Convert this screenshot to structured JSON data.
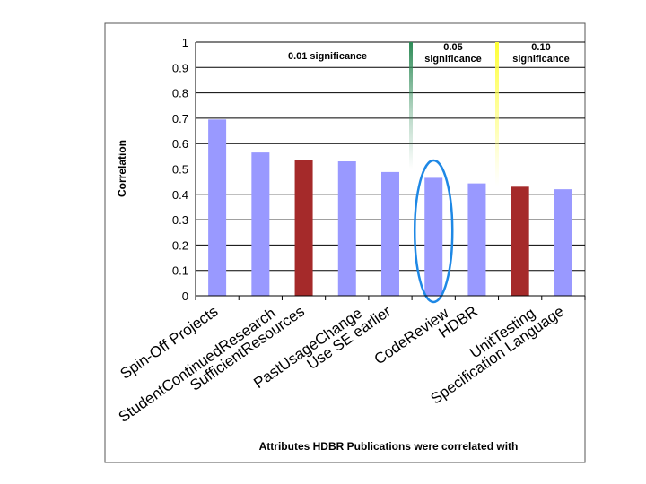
{
  "chart_data": {
    "type": "bar",
    "title": "",
    "ylabel": "Correlation",
    "xlabel": "Attributes HDBR Publications were correlated with",
    "ylim": [
      0,
      1
    ],
    "yticks": [
      "0",
      "0.1",
      "0.2",
      "0.3",
      "0.4",
      "0.5",
      "0.6",
      "0.7",
      "0.8",
      "0.9",
      "1"
    ],
    "grid": true,
    "categories": [
      "Spin-Off Projects",
      "StudentContinuedResearch",
      "SufficientResources",
      "PastUsageChange",
      "Use SE earlier",
      "CodeReview",
      "HDBR",
      "UnitTesting",
      "Specification Language"
    ],
    "values": [
      0.695,
      0.565,
      0.535,
      0.53,
      0.488,
      0.465,
      0.443,
      0.43,
      0.42
    ],
    "bar_colors": [
      "#9999ff",
      "#9999ff",
      "#a52a2a",
      "#9999ff",
      "#9999ff",
      "#9999ff",
      "#9999ff",
      "#a52a2a",
      "#9999ff"
    ],
    "annotations": [
      {
        "text": "0.01 significance",
        "lines": [
          "0.01 significance"
        ]
      },
      {
        "text": "0.05 significance",
        "lines": [
          "0.05",
          "significance"
        ],
        "color": "#2e8b57"
      },
      {
        "text": "0.10 significance",
        "lines": [
          "0.10",
          "significance"
        ],
        "color": "#ffff00"
      }
    ],
    "highlight": {
      "category": "CodeReview",
      "color": "#1e88e5"
    }
  }
}
